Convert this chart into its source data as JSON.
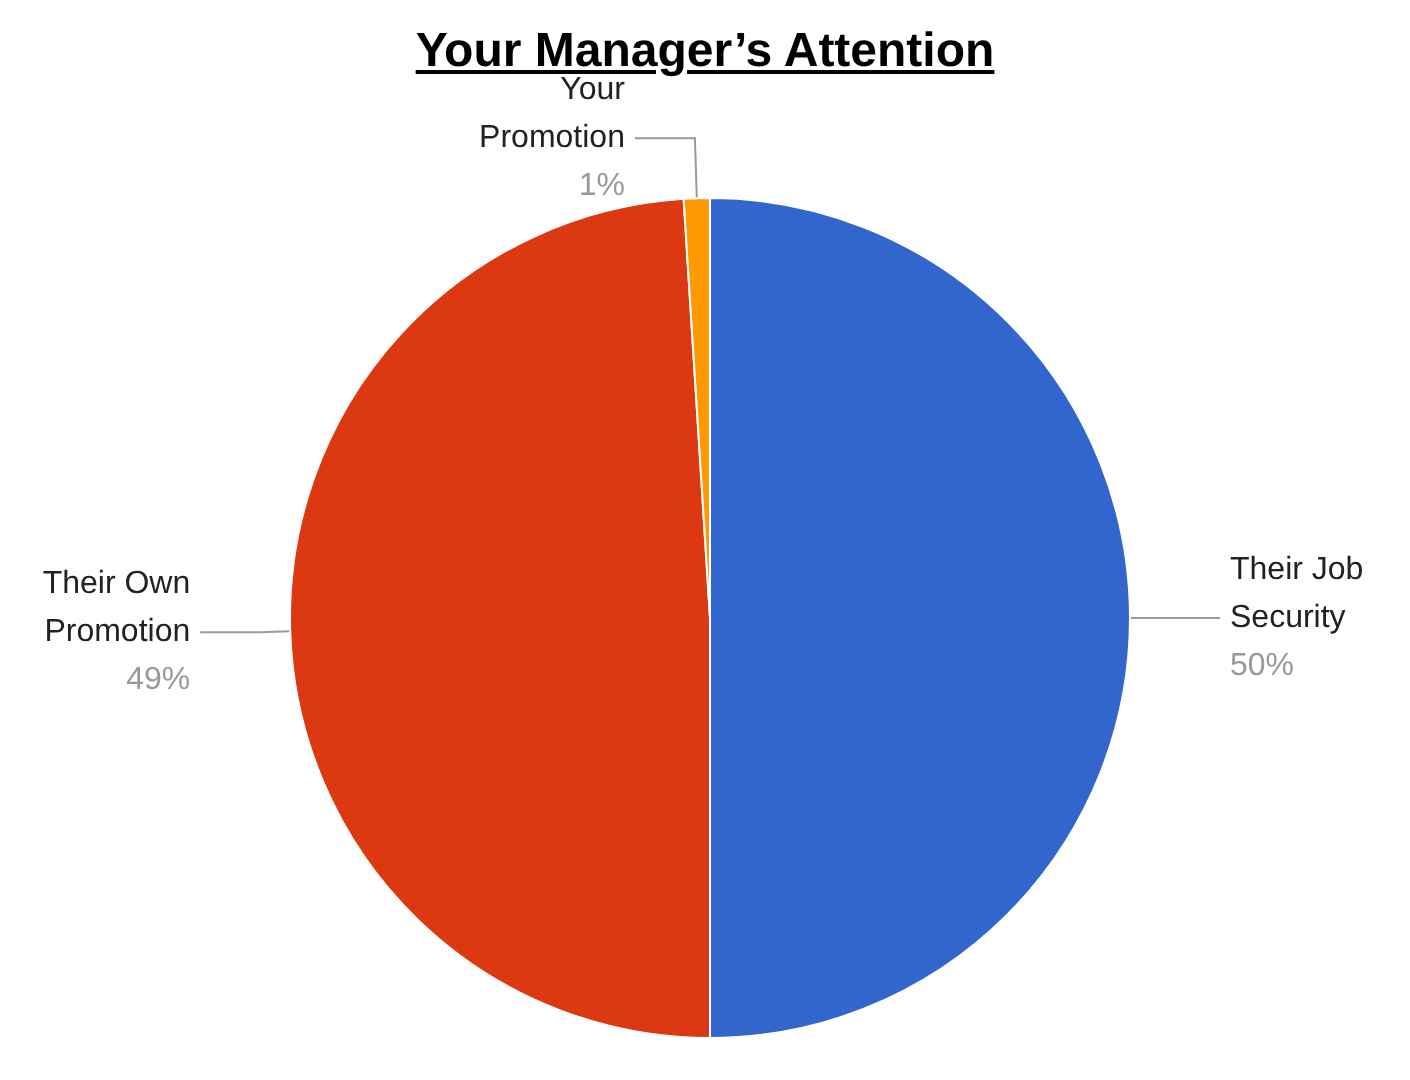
{
  "chart_data": {
    "type": "pie",
    "title": "Your Manager’s Attention",
    "categories": [
      "Their Job Security",
      "Their Own Promotion",
      "Your Promotion"
    ],
    "values": [
      50,
      49,
      1
    ],
    "value_labels": [
      "50%",
      "49%",
      "1%"
    ],
    "colors": [
      "#3366cc",
      "#dc3912",
      "#ff9900"
    ],
    "legend": false
  }
}
